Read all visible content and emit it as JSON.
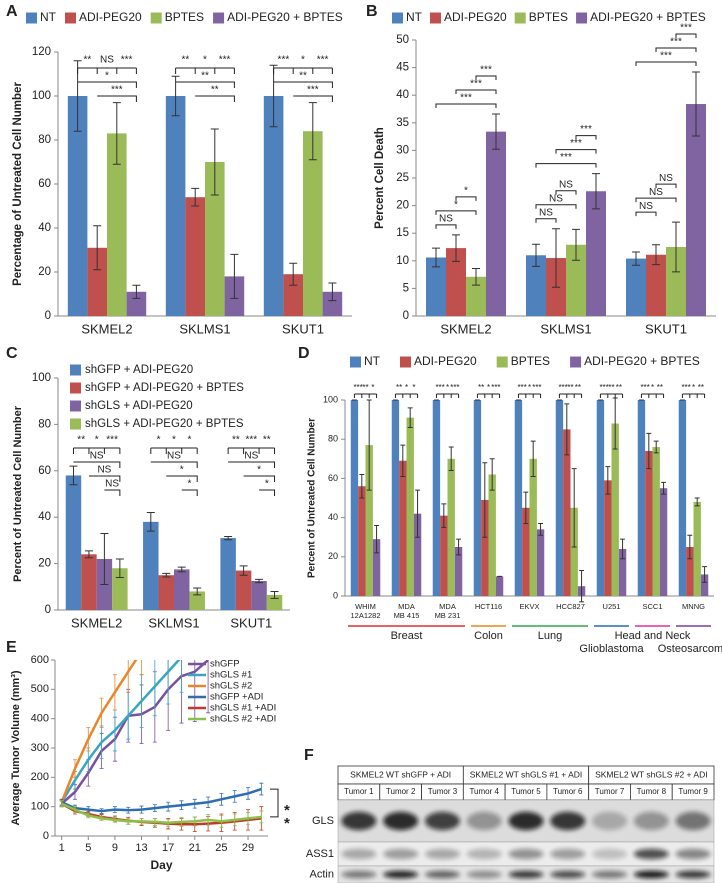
{
  "chart_data": [
    {
      "panel": "A",
      "type": "bar",
      "y_label": "Percentage of Untreated Cell Number",
      "categories": [
        "SKMEL2",
        "SKLMS1",
        "SKUT1"
      ],
      "series": [
        {
          "name": "NT",
          "color": "#4f81bd",
          "values": [
            100,
            100,
            100
          ],
          "errors": [
            16,
            9,
            14
          ]
        },
        {
          "name": "ADI-PEG20",
          "color": "#c0504d",
          "values": [
            31,
            54,
            19
          ],
          "errors": [
            10,
            4,
            5
          ]
        },
        {
          "name": "BPTES",
          "color": "#9bbb59",
          "values": [
            83,
            70,
            84
          ],
          "errors": [
            14,
            15,
            13
          ]
        },
        {
          "name": "ADI-PEG20 + BPTES",
          "color": "#8064a2",
          "values": [
            11,
            18,
            11
          ],
          "errors": [
            3,
            10,
            4
          ]
        }
      ],
      "ylim": [
        0,
        120
      ],
      "yticks": [
        0,
        20,
        40,
        60,
        80,
        100,
        120
      ],
      "legend": "top",
      "annotations": [
        [
          "**",
          "NS",
          "***",
          "*",
          "***"
        ],
        [
          "**",
          "*",
          "***",
          "**",
          "**"
        ],
        [
          "***",
          "*",
          "***",
          "**",
          "***"
        ]
      ]
    },
    {
      "panel": "B",
      "type": "bar",
      "y_label": "Percent Cell Death",
      "categories": [
        "SKMEL2",
        "SKLMS1",
        "SKUT1"
      ],
      "series": [
        {
          "name": "NT",
          "color": "#4f81bd",
          "values": [
            10.6,
            11,
            10.4
          ],
          "errors": [
            1.7,
            2,
            1.2
          ]
        },
        {
          "name": "ADI-PEG20",
          "color": "#c0504d",
          "values": [
            12.3,
            10.5,
            11.1
          ],
          "errors": [
            2.4,
            5.3,
            1.8
          ]
        },
        {
          "name": "BPTES",
          "color": "#9bbb59",
          "values": [
            7.1,
            12.9,
            12.5
          ],
          "errors": [
            1.5,
            2.8,
            4.5
          ]
        },
        {
          "name": "ADI-PEG20 + BPTES",
          "color": "#8064a2",
          "values": [
            33.4,
            22.6,
            38.4
          ],
          "errors": [
            3.2,
            3.2,
            5.8
          ]
        }
      ],
      "ylim": [
        0,
        50
      ],
      "yticks": [
        0,
        5,
        10,
        15,
        20,
        25,
        30,
        35,
        40,
        45,
        50
      ],
      "legend": "top",
      "annotations": [
        [
          "NS",
          "*",
          "*",
          "***",
          "***",
          "***"
        ],
        [
          "NS",
          "NS",
          "NS",
          "***",
          "***",
          "***"
        ],
        [
          "NS",
          "NS",
          "NS",
          "***",
          "***",
          "***"
        ]
      ]
    },
    {
      "panel": "C",
      "type": "bar",
      "y_label": "Percent of Untreated Cell Number",
      "categories": [
        "SKMEL2",
        "SKLMS1",
        "SKUT1"
      ],
      "series": [
        {
          "name": "shGFP + ADI-PEG20",
          "color": "#4f81bd",
          "values": [
            58,
            38,
            31
          ],
          "errors": [
            4,
            4,
            0.7
          ]
        },
        {
          "name": "shGFP + ADI-PEG20 + BPTES",
          "color": "#c0504d",
          "values": [
            24,
            15,
            17
          ],
          "errors": [
            1.5,
            0.8,
            2
          ]
        },
        {
          "name": "shGLS + ADI-PEG20",
          "color": "#8064a2",
          "values": [
            22,
            17.5,
            12.5
          ],
          "errors": [
            11,
            1,
            0.7
          ]
        },
        {
          "name": "shGLS + ADI-PEG20 + BPTES",
          "color": "#9bbb59",
          "values": [
            18,
            8,
            6.5
          ],
          "errors": [
            4,
            1.5,
            1.5
          ]
        }
      ],
      "ylim": [
        0,
        100
      ],
      "yticks": [
        0,
        20,
        40,
        60,
        80,
        100
      ],
      "legend": "upper left",
      "annotations": [
        [
          "**",
          "*",
          "***",
          "NS",
          "NS",
          "NS"
        ],
        [
          "*",
          "*",
          "*",
          "NS",
          "*",
          "*"
        ],
        [
          "**",
          "***",
          "**",
          "NS",
          "*",
          "*"
        ]
      ]
    },
    {
      "panel": "D",
      "type": "bar",
      "y_label": "Percent of Untreated Cell Number",
      "groups": [
        {
          "name": "Breast",
          "color": "#e03030",
          "categories": [
            [
              "WHIM",
              "12A1282"
            ],
            [
              "MDA",
              "MB 415"
            ],
            [
              "MDA",
              "MB 231"
            ]
          ]
        },
        {
          "name": "Colon",
          "color": "#e8861a",
          "categories": [
            [
              "HCT116"
            ]
          ]
        },
        {
          "name": "Lung",
          "color": "#2ea84a",
          "categories": [
            [
              "EKVX"
            ],
            [
              "HCC827"
            ]
          ]
        },
        {
          "name": "Glioblastoma",
          "color": "#1f6fb5",
          "categories": [
            [
              "U251"
            ]
          ]
        },
        {
          "name": "Head and Neck",
          "color": "#e0309a",
          "categories": [
            [
              "SCC1"
            ]
          ]
        },
        {
          "name": "Osteosarcoma",
          "color": "#7a3ea0",
          "categories": [
            [
              "MNNG"
            ]
          ]
        }
      ],
      "series": [
        {
          "name": "NT",
          "color": "#4f81bd",
          "values": [
            100,
            100,
            100,
            100,
            100,
            100,
            100,
            100,
            100
          ],
          "errors": [
            0,
            0,
            0,
            0,
            0,
            0,
            0,
            0,
            0
          ]
        },
        {
          "name": "ADI-PEG20",
          "color": "#c0504d",
          "values": [
            56,
            69,
            41,
            49,
            45,
            85,
            59,
            74,
            25
          ],
          "errors": [
            6,
            8,
            6,
            19,
            8,
            13,
            7,
            9,
            6
          ]
        },
        {
          "name": "BPTES",
          "color": "#9bbb59",
          "values": [
            77,
            91,
            70,
            62,
            70,
            45,
            88,
            76,
            48
          ],
          "errors": [
            23,
            5,
            6,
            8,
            9,
            20,
            13,
            3,
            2
          ]
        },
        {
          "name": "ADI-PEG20 + BPTES",
          "color": "#8064a2",
          "values": [
            29,
            42,
            25,
            10,
            34,
            5,
            24,
            55,
            11
          ],
          "errors": [
            7,
            12,
            4,
            0,
            3,
            8,
            5,
            3,
            4
          ]
        }
      ],
      "ylim": [
        0,
        100
      ],
      "yticks": [
        0,
        20,
        40,
        60,
        80,
        100
      ],
      "legend": "top",
      "annotations": [
        [
          "***",
          "**",
          "*"
        ],
        [
          "**",
          "*",
          "*"
        ],
        [
          "***",
          "*",
          "***"
        ],
        [
          "**",
          "*",
          "***"
        ],
        [
          "***",
          "*",
          "***"
        ],
        [
          "***",
          "**",
          "**"
        ],
        [
          "***",
          "**",
          "**"
        ],
        [
          "***",
          "*",
          "**"
        ],
        [
          "***",
          "*",
          "**"
        ]
      ]
    },
    {
      "panel": "E",
      "type": "line",
      "y_label": "Average Tumor Volume (mm³)",
      "x_label": "Day",
      "x": [
        1,
        3,
        5,
        7,
        9,
        11,
        13,
        15,
        17,
        19,
        21,
        23,
        25,
        27,
        29,
        31
      ],
      "xlim": [
        0,
        32
      ],
      "xticks": [
        1,
        5,
        9,
        13,
        17,
        21,
        25,
        29
      ],
      "ylim": [
        0,
        600
      ],
      "yticks": [
        0,
        100,
        200,
        300,
        400,
        500,
        600
      ],
      "legend": "upper right",
      "series": [
        {
          "name": "shGFP",
          "color": "#7b4fa0",
          "values": [
            110,
            150,
            215,
            290,
            330,
            410,
            415,
            440,
            500,
            545,
            560,
            600,
            null,
            null,
            null,
            null
          ],
          "errors": [
            10,
            25,
            45,
            60,
            75,
            90,
            100,
            120,
            140,
            160,
            170,
            180,
            null,
            null,
            null,
            null
          ]
        },
        {
          "name": "shGLS #1",
          "color": "#3aa5c0",
          "values": [
            115,
            190,
            260,
            320,
            360,
            410,
            460,
            510,
            560,
            610,
            null,
            null,
            null,
            null,
            null,
            null
          ],
          "errors": [
            10,
            30,
            40,
            55,
            70,
            80,
            90,
            100,
            110,
            120,
            null,
            null,
            null,
            null,
            null,
            null
          ]
        },
        {
          "name": "shGLS #2",
          "color": "#e8862e",
          "values": [
            115,
            230,
            330,
            420,
            490,
            560,
            630,
            null,
            null,
            null,
            null,
            null,
            null,
            null,
            null,
            null
          ],
          "errors": [
            10,
            30,
            40,
            50,
            60,
            70,
            80,
            null,
            null,
            null,
            null,
            null,
            null,
            null,
            null,
            null
          ]
        },
        {
          "name": "shGFP +ADI",
          "color": "#2e6db0",
          "values": [
            115,
            95,
            90,
            85,
            90,
            88,
            90,
            95,
            100,
            105,
            110,
            115,
            125,
            135,
            145,
            160
          ],
          "errors": [
            10,
            10,
            10,
            8,
            10,
            10,
            12,
            12,
            15,
            15,
            15,
            18,
            20,
            20,
            20,
            20
          ]
        },
        {
          "name": "shGLS #1 +ADI",
          "color": "#c0392b",
          "values": [
            110,
            85,
            75,
            65,
            58,
            52,
            48,
            45,
            42,
            40,
            40,
            42,
            45,
            50,
            55,
            60
          ],
          "errors": [
            10,
            10,
            8,
            8,
            10,
            12,
            12,
            15,
            18,
            20,
            25,
            25,
            30,
            30,
            35,
            40
          ]
        },
        {
          "name": "shGLS #2 +ADI",
          "color": "#8cc04a",
          "values": [
            110,
            90,
            70,
            60,
            55,
            50,
            50,
            48,
            45,
            48,
            50,
            55,
            50,
            55,
            60,
            65
          ],
          "errors": [
            10,
            10,
            8,
            8,
            8,
            10,
            10,
            12,
            12,
            15,
            15,
            18,
            20,
            20,
            20,
            20
          ]
        }
      ],
      "annotations": [
        {
          "text": "*",
          "color": "#8cc04a"
        },
        {
          "text": "*",
          "color": "#c0392b"
        }
      ]
    }
  ],
  "blot": {
    "panel": "F",
    "groups": [
      "SKMEL2 WT shGFP + ADI",
      "SKMEL2 WT shGLS #1 + ADI",
      "SKMEL2 WT shGLS #2 + ADI"
    ],
    "tumors": [
      "Tumor 1",
      "Tumor 2",
      "Tumor 3",
      "Tumor 4",
      "Tumor 5",
      "Tumor 6",
      "Tumor 7",
      "Tumor 8",
      "Tumor 9"
    ],
    "rows": [
      "GLS",
      "ASS1",
      "Actin"
    ]
  }
}
